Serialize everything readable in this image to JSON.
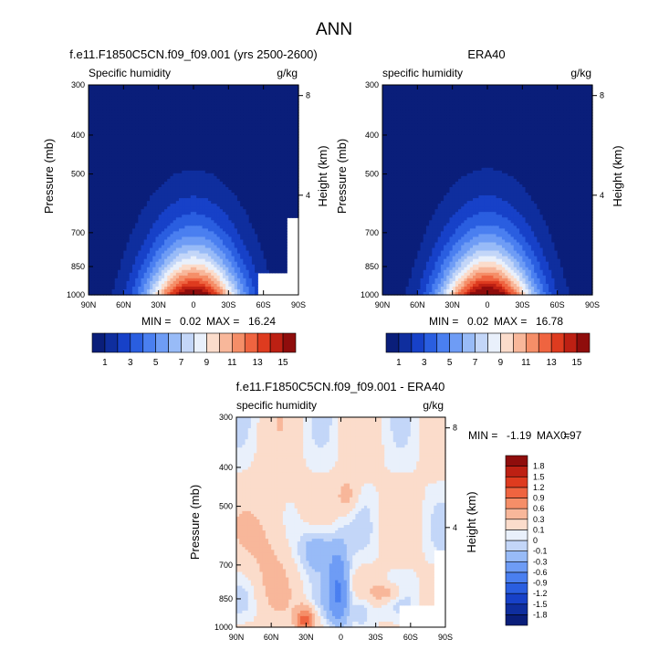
{
  "colors": {
    "abs_scale": [
      "#0a1e7a",
      "#0f2e9e",
      "#1741c8",
      "#2a5ee0",
      "#4a7ff0",
      "#6e9cf5",
      "#98bbf7",
      "#c3d6f8",
      "#e9f0fb",
      "#fbdccb",
      "#f8b79a",
      "#f58e68",
      "#ef6440",
      "#de3b1f",
      "#bd2013",
      "#8f0d0c"
    ],
    "diff_scale": [
      "#0a1e7a",
      "#0f2e9e",
      "#1741c8",
      "#2a5ee0",
      "#4a7ff0",
      "#6e9cf5",
      "#98bbf7",
      "#c3d6f8",
      "#e9f0fb",
      "#fbdccb",
      "#f8b79a",
      "#f58e68",
      "#ef6440",
      "#de3b1f",
      "#bd2013",
      "#8f0d0c"
    ]
  },
  "chart_data": [
    {
      "id": "model",
      "type": "contour",
      "title": "f.e11.F1850C5CN.f09_f09.001 (yrs 2500-2600)",
      "left_label": "Specific humidity",
      "right_label": "g/kg",
      "ylabel": "Pressure (mb)",
      "y2label": "Height (km)",
      "x_ticks": [
        "90N",
        "60N",
        "30N",
        "0",
        "30S",
        "60S",
        "90S"
      ],
      "y_ticks": [
        "300",
        "400",
        "500",
        "700",
        "850",
        "1000"
      ],
      "y_tick_values": [
        300,
        400,
        500,
        700,
        850,
        1000
      ],
      "y2_ticks": [
        "8",
        "4"
      ],
      "y2_tick_values": [
        8,
        4
      ],
      "stats": {
        "min": "0.02",
        "max": "16.24"
      },
      "lat_range": [
        90,
        -90
      ],
      "p_range": [
        300,
        1000
      ],
      "peak": 16.24
    },
    {
      "id": "obs",
      "type": "contour",
      "title": "ERA40",
      "left_label": "specific humidity",
      "right_label": "g/kg",
      "ylabel": "Pressure (mb)",
      "y2label": "Height (km)",
      "x_ticks": [
        "90N",
        "60N",
        "30N",
        "0",
        "30S",
        "60S",
        "90S"
      ],
      "y_ticks": [
        "300",
        "400",
        "500",
        "700",
        "850",
        "1000"
      ],
      "y_tick_values": [
        300,
        400,
        500,
        700,
        850,
        1000
      ],
      "y2_ticks": [
        "8",
        "4"
      ],
      "y2_tick_values": [
        8,
        4
      ],
      "stats": {
        "min": "0.02",
        "max": "16.78"
      },
      "lat_range": [
        90,
        -90
      ],
      "p_range": [
        300,
        1000
      ],
      "peak": 16.78
    },
    {
      "id": "diff",
      "type": "contour",
      "title": "f.e11.F1850C5CN.f09_f09.001 - ERA40",
      "left_label": "specific humidity",
      "right_label": "g/kg",
      "ylabel": "Pressure (mb)",
      "y2label": "Height (km)",
      "x_ticks": [
        "90N",
        "60N",
        "30N",
        "0",
        "30S",
        "60S",
        "90S"
      ],
      "y_ticks": [
        "300",
        "400",
        "500",
        "700",
        "850",
        "1000"
      ],
      "y_tick_values": [
        300,
        400,
        500,
        700,
        850,
        1000
      ],
      "y2_ticks": [
        "8",
        "4"
      ],
      "y2_tick_values": [
        8,
        4
      ],
      "stats": {
        "min": "-1.19",
        "max": "0.97"
      },
      "lat_range": [
        90,
        -90
      ],
      "p_range": [
        300,
        1000
      ]
    }
  ],
  "figure_title": "ANN",
  "stats_labels": {
    "min": "MIN =",
    "max": "MAX ="
  },
  "abs_colorbar": {
    "levels": [
      1,
      2,
      3,
      4,
      5,
      6,
      7,
      8,
      9,
      10,
      11,
      12,
      13,
      14,
      15
    ],
    "labels": [
      "1",
      "3",
      "5",
      "7",
      "9",
      "11",
      "13",
      "15"
    ]
  },
  "diff_colorbar": {
    "levels": [
      -1.8,
      -1.5,
      -1.2,
      -0.9,
      -0.6,
      -0.3,
      -0.1,
      0,
      0.1,
      0.3,
      0.6,
      0.9,
      1.2,
      1.5,
      1.8
    ],
    "labels": [
      "-1.8",
      "-1.5",
      "-1.2",
      "-0.9",
      "-0.6",
      "-0.3",
      "-0.1",
      "0",
      "0.1",
      "0.3",
      "0.6",
      "0.9",
      "1.2",
      "1.5",
      "1.8"
    ]
  }
}
